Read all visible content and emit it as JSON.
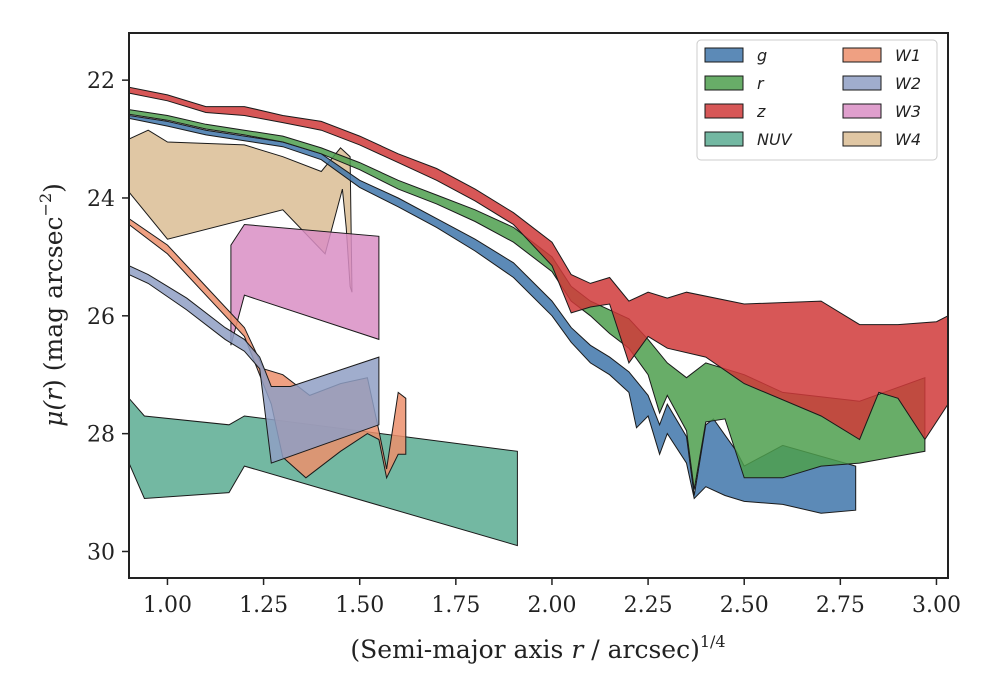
{
  "chart_data": {
    "type": "area",
    "xlabel": "(Semi-major axis r / arcsec)",
    "xlabel_pre": "(Semi-major axis ",
    "xlabel_var": "r",
    "xlabel_post": " / arcsec)",
    "xlabel_exp": "1/4",
    "ylabel_pre": "μ(",
    "ylabel_var": "r",
    "ylabel_mid": ") (mag arcsec",
    "ylabel_exp": "−2",
    "ylabel_post": ")",
    "xlim": [
      0.9,
      3.03
    ],
    "ylim": [
      30.45,
      21.2
    ],
    "y_inverted": true,
    "xticks": [
      1.0,
      1.25,
      1.5,
      1.75,
      2.0,
      2.25,
      2.5,
      2.75,
      3.0
    ],
    "xtick_labels": [
      "1.00",
      "1.25",
      "1.50",
      "1.75",
      "2.00",
      "2.25",
      "2.50",
      "2.75",
      "3.00"
    ],
    "yticks": [
      22,
      24,
      26,
      28,
      30
    ],
    "ytick_labels": [
      "22",
      "24",
      "26",
      "28",
      "30"
    ],
    "legend": {
      "placement": "top-right",
      "columns": 2
    },
    "series": [
      {
        "name": "NUV",
        "color": "#5aab92",
        "upper": [
          [
            0.9,
            27.4
          ],
          [
            0.94,
            27.7
          ],
          [
            1.16,
            27.85
          ],
          [
            1.2,
            27.7
          ],
          [
            1.91,
            28.3
          ]
        ],
        "lower": [
          [
            0.9,
            28.5
          ],
          [
            0.94,
            29.1
          ],
          [
            1.16,
            29.0
          ],
          [
            1.2,
            28.55
          ],
          [
            1.91,
            29.9
          ]
        ]
      },
      {
        "name": "W4",
        "color": "#dbbd94",
        "upper": [
          [
            0.9,
            23.0
          ],
          [
            0.95,
            22.85
          ],
          [
            1.0,
            23.05
          ],
          [
            1.2,
            23.1
          ],
          [
            1.3,
            23.3
          ],
          [
            1.4,
            23.55
          ],
          [
            1.45,
            23.15
          ],
          [
            1.475,
            23.3
          ],
          [
            1.48,
            25.6
          ]
        ],
        "lower": [
          [
            0.9,
            23.9
          ],
          [
            1.0,
            24.7
          ],
          [
            1.3,
            24.2
          ],
          [
            1.41,
            24.95
          ],
          [
            1.455,
            23.85
          ],
          [
            1.465,
            24.5
          ],
          [
            1.475,
            25.5
          ],
          [
            1.48,
            25.6
          ]
        ]
      },
      {
        "name": "W3",
        "color": "#d98ec4",
        "upper": [
          [
            1.165,
            24.8
          ],
          [
            1.2,
            24.45
          ],
          [
            1.55,
            24.65
          ]
        ],
        "lower": [
          [
            1.165,
            26.5
          ],
          [
            1.2,
            25.65
          ],
          [
            1.55,
            26.4
          ]
        ]
      },
      {
        "name": "W1",
        "color": "#ec8f6c",
        "upper": [
          [
            0.9,
            24.35
          ],
          [
            1.0,
            24.8
          ],
          [
            1.1,
            25.5
          ],
          [
            1.2,
            26.2
          ],
          [
            1.25,
            26.9
          ],
          [
            1.3,
            27.0
          ],
          [
            1.37,
            27.35
          ],
          [
            1.45,
            27.15
          ],
          [
            1.52,
            27.05
          ],
          [
            1.55,
            27.95
          ],
          [
            1.57,
            28.6
          ],
          [
            1.6,
            27.3
          ],
          [
            1.62,
            27.4
          ]
        ],
        "lower": [
          [
            0.9,
            24.45
          ],
          [
            1.0,
            24.95
          ],
          [
            1.1,
            25.65
          ],
          [
            1.2,
            26.35
          ],
          [
            1.27,
            27.5
          ],
          [
            1.3,
            28.4
          ],
          [
            1.36,
            28.75
          ],
          [
            1.45,
            28.3
          ],
          [
            1.52,
            28.0
          ],
          [
            1.55,
            28.1
          ],
          [
            1.57,
            28.75
          ],
          [
            1.6,
            28.35
          ],
          [
            1.62,
            28.35
          ]
        ]
      },
      {
        "name": "W2",
        "color": "#8f9fc4",
        "upper": [
          [
            0.9,
            25.15
          ],
          [
            0.95,
            25.3
          ],
          [
            1.05,
            25.7
          ],
          [
            1.15,
            26.2
          ],
          [
            1.2,
            26.4
          ],
          [
            1.24,
            26.7
          ],
          [
            1.27,
            27.2
          ],
          [
            1.32,
            27.2
          ],
          [
            1.55,
            26.7
          ]
        ],
        "lower": [
          [
            0.9,
            25.3
          ],
          [
            0.95,
            25.45
          ],
          [
            1.05,
            25.9
          ],
          [
            1.15,
            26.4
          ],
          [
            1.2,
            26.6
          ],
          [
            1.24,
            26.9
          ],
          [
            1.27,
            28.5
          ],
          [
            1.55,
            27.85
          ]
        ]
      },
      {
        "name": "g",
        "color": "#3f76aa",
        "upper": [
          [
            0.9,
            22.6
          ],
          [
            1.0,
            22.7
          ],
          [
            1.1,
            22.85
          ],
          [
            1.2,
            22.95
          ],
          [
            1.3,
            23.05
          ],
          [
            1.4,
            23.25
          ],
          [
            1.5,
            23.7
          ],
          [
            1.6,
            24.0
          ],
          [
            1.7,
            24.35
          ],
          [
            1.8,
            24.7
          ],
          [
            1.9,
            25.1
          ],
          [
            2.0,
            25.75
          ],
          [
            2.05,
            26.2
          ],
          [
            2.1,
            26.5
          ],
          [
            2.15,
            26.7
          ],
          [
            2.2,
            26.95
          ],
          [
            2.25,
            27.35
          ],
          [
            2.28,
            27.85
          ],
          [
            2.3,
            27.5
          ],
          [
            2.35,
            28.05
          ],
          [
            2.37,
            29.05
          ],
          [
            2.4,
            27.85
          ],
          [
            2.42,
            27.75
          ],
          [
            2.48,
            28.3
          ],
          [
            2.5,
            28.55
          ],
          [
            2.6,
            28.2
          ],
          [
            2.79,
            28.55
          ]
        ],
        "lower": [
          [
            0.9,
            22.65
          ],
          [
            1.0,
            22.78
          ],
          [
            1.1,
            22.93
          ],
          [
            1.2,
            23.03
          ],
          [
            1.3,
            23.13
          ],
          [
            1.4,
            23.35
          ],
          [
            1.5,
            23.82
          ],
          [
            1.6,
            24.15
          ],
          [
            1.7,
            24.5
          ],
          [
            1.8,
            24.9
          ],
          [
            1.9,
            25.35
          ],
          [
            2.0,
            26.0
          ],
          [
            2.05,
            26.45
          ],
          [
            2.1,
            26.8
          ],
          [
            2.15,
            27.0
          ],
          [
            2.2,
            27.3
          ],
          [
            2.22,
            27.9
          ],
          [
            2.25,
            27.7
          ],
          [
            2.28,
            28.35
          ],
          [
            2.3,
            28.0
          ],
          [
            2.35,
            28.5
          ],
          [
            2.37,
            29.1
          ],
          [
            2.4,
            28.9
          ],
          [
            2.45,
            29.05
          ],
          [
            2.5,
            29.15
          ],
          [
            2.6,
            29.2
          ],
          [
            2.7,
            29.35
          ],
          [
            2.79,
            29.3
          ]
        ]
      },
      {
        "name": "r",
        "color": "#4e9f4e",
        "upper": [
          [
            0.9,
            22.5
          ],
          [
            1.0,
            22.6
          ],
          [
            1.1,
            22.75
          ],
          [
            1.2,
            22.85
          ],
          [
            1.3,
            22.95
          ],
          [
            1.4,
            23.15
          ],
          [
            1.5,
            23.4
          ],
          [
            1.6,
            23.7
          ],
          [
            1.7,
            23.95
          ],
          [
            1.8,
            24.2
          ],
          [
            1.9,
            24.5
          ],
          [
            2.0,
            25.0
          ],
          [
            2.05,
            25.5
          ],
          [
            2.1,
            25.75
          ],
          [
            2.2,
            26.05
          ],
          [
            2.25,
            26.4
          ],
          [
            2.3,
            26.8
          ],
          [
            2.35,
            27.05
          ],
          [
            2.4,
            26.8
          ],
          [
            2.5,
            27.0
          ],
          [
            2.6,
            27.3
          ],
          [
            2.8,
            27.45
          ],
          [
            2.97,
            27.05
          ]
        ],
        "lower": [
          [
            0.9,
            22.58
          ],
          [
            1.0,
            22.68
          ],
          [
            1.1,
            22.83
          ],
          [
            1.2,
            22.93
          ],
          [
            1.3,
            23.05
          ],
          [
            1.4,
            23.25
          ],
          [
            1.5,
            23.52
          ],
          [
            1.6,
            23.85
          ],
          [
            1.7,
            24.1
          ],
          [
            1.8,
            24.4
          ],
          [
            1.9,
            24.75
          ],
          [
            2.0,
            25.25
          ],
          [
            2.05,
            25.75
          ],
          [
            2.1,
            26.0
          ],
          [
            2.15,
            26.3
          ],
          [
            2.2,
            26.55
          ],
          [
            2.25,
            27.0
          ],
          [
            2.28,
            27.65
          ],
          [
            2.3,
            27.35
          ],
          [
            2.35,
            27.95
          ],
          [
            2.37,
            28.95
          ],
          [
            2.4,
            27.8
          ],
          [
            2.45,
            27.75
          ],
          [
            2.5,
            28.75
          ],
          [
            2.6,
            28.75
          ],
          [
            2.7,
            28.55
          ],
          [
            2.8,
            28.5
          ],
          [
            2.97,
            28.3
          ]
        ]
      },
      {
        "name": "z",
        "color": "#d03a3a",
        "upper": [
          [
            0.9,
            22.12
          ],
          [
            1.0,
            22.25
          ],
          [
            1.1,
            22.45
          ],
          [
            1.2,
            22.45
          ],
          [
            1.3,
            22.6
          ],
          [
            1.4,
            22.7
          ],
          [
            1.5,
            22.95
          ],
          [
            1.6,
            23.25
          ],
          [
            1.7,
            23.5
          ],
          [
            1.8,
            23.85
          ],
          [
            1.9,
            24.25
          ],
          [
            2.0,
            24.75
          ],
          [
            2.05,
            25.3
          ],
          [
            2.1,
            25.45
          ],
          [
            2.15,
            25.35
          ],
          [
            2.2,
            25.75
          ],
          [
            2.25,
            25.6
          ],
          [
            2.3,
            25.7
          ],
          [
            2.35,
            25.6
          ],
          [
            2.5,
            25.8
          ],
          [
            2.7,
            25.75
          ],
          [
            2.8,
            26.15
          ],
          [
            2.9,
            26.15
          ],
          [
            3.0,
            26.1
          ],
          [
            3.03,
            26.0
          ]
        ],
        "lower": [
          [
            0.9,
            22.22
          ],
          [
            1.0,
            22.35
          ],
          [
            1.1,
            22.55
          ],
          [
            1.2,
            22.6
          ],
          [
            1.3,
            22.72
          ],
          [
            1.4,
            22.85
          ],
          [
            1.5,
            23.1
          ],
          [
            1.6,
            23.4
          ],
          [
            1.7,
            23.7
          ],
          [
            1.8,
            24.05
          ],
          [
            1.9,
            24.45
          ],
          [
            2.0,
            25.15
          ],
          [
            2.05,
            25.95
          ],
          [
            2.1,
            25.85
          ],
          [
            2.15,
            25.8
          ],
          [
            2.2,
            26.8
          ],
          [
            2.25,
            26.35
          ],
          [
            2.3,
            26.55
          ],
          [
            2.4,
            26.7
          ],
          [
            2.5,
            27.15
          ],
          [
            2.7,
            27.7
          ],
          [
            2.8,
            28.1
          ],
          [
            2.85,
            27.3
          ],
          [
            2.9,
            27.4
          ],
          [
            2.97,
            28.1
          ],
          [
            3.03,
            27.5
          ]
        ]
      }
    ],
    "legend_entries": [
      {
        "label": "g",
        "color": "#3f76aa",
        "col": 0,
        "row": 0
      },
      {
        "label": "r",
        "color": "#4e9f4e",
        "col": 0,
        "row": 1
      },
      {
        "label": "z",
        "color": "#d03a3a",
        "col": 0,
        "row": 2
      },
      {
        "label": "NUV",
        "color": "#5aab92",
        "col": 0,
        "row": 3
      },
      {
        "label": "W1",
        "color": "#ec8f6c",
        "col": 1,
        "row": 0
      },
      {
        "label": "W2",
        "color": "#8f9fc4",
        "col": 1,
        "row": 1
      },
      {
        "label": "W3",
        "color": "#d98ec4",
        "col": 1,
        "row": 2
      },
      {
        "label": "W4",
        "color": "#dbbd94",
        "col": 1,
        "row": 3
      }
    ]
  }
}
